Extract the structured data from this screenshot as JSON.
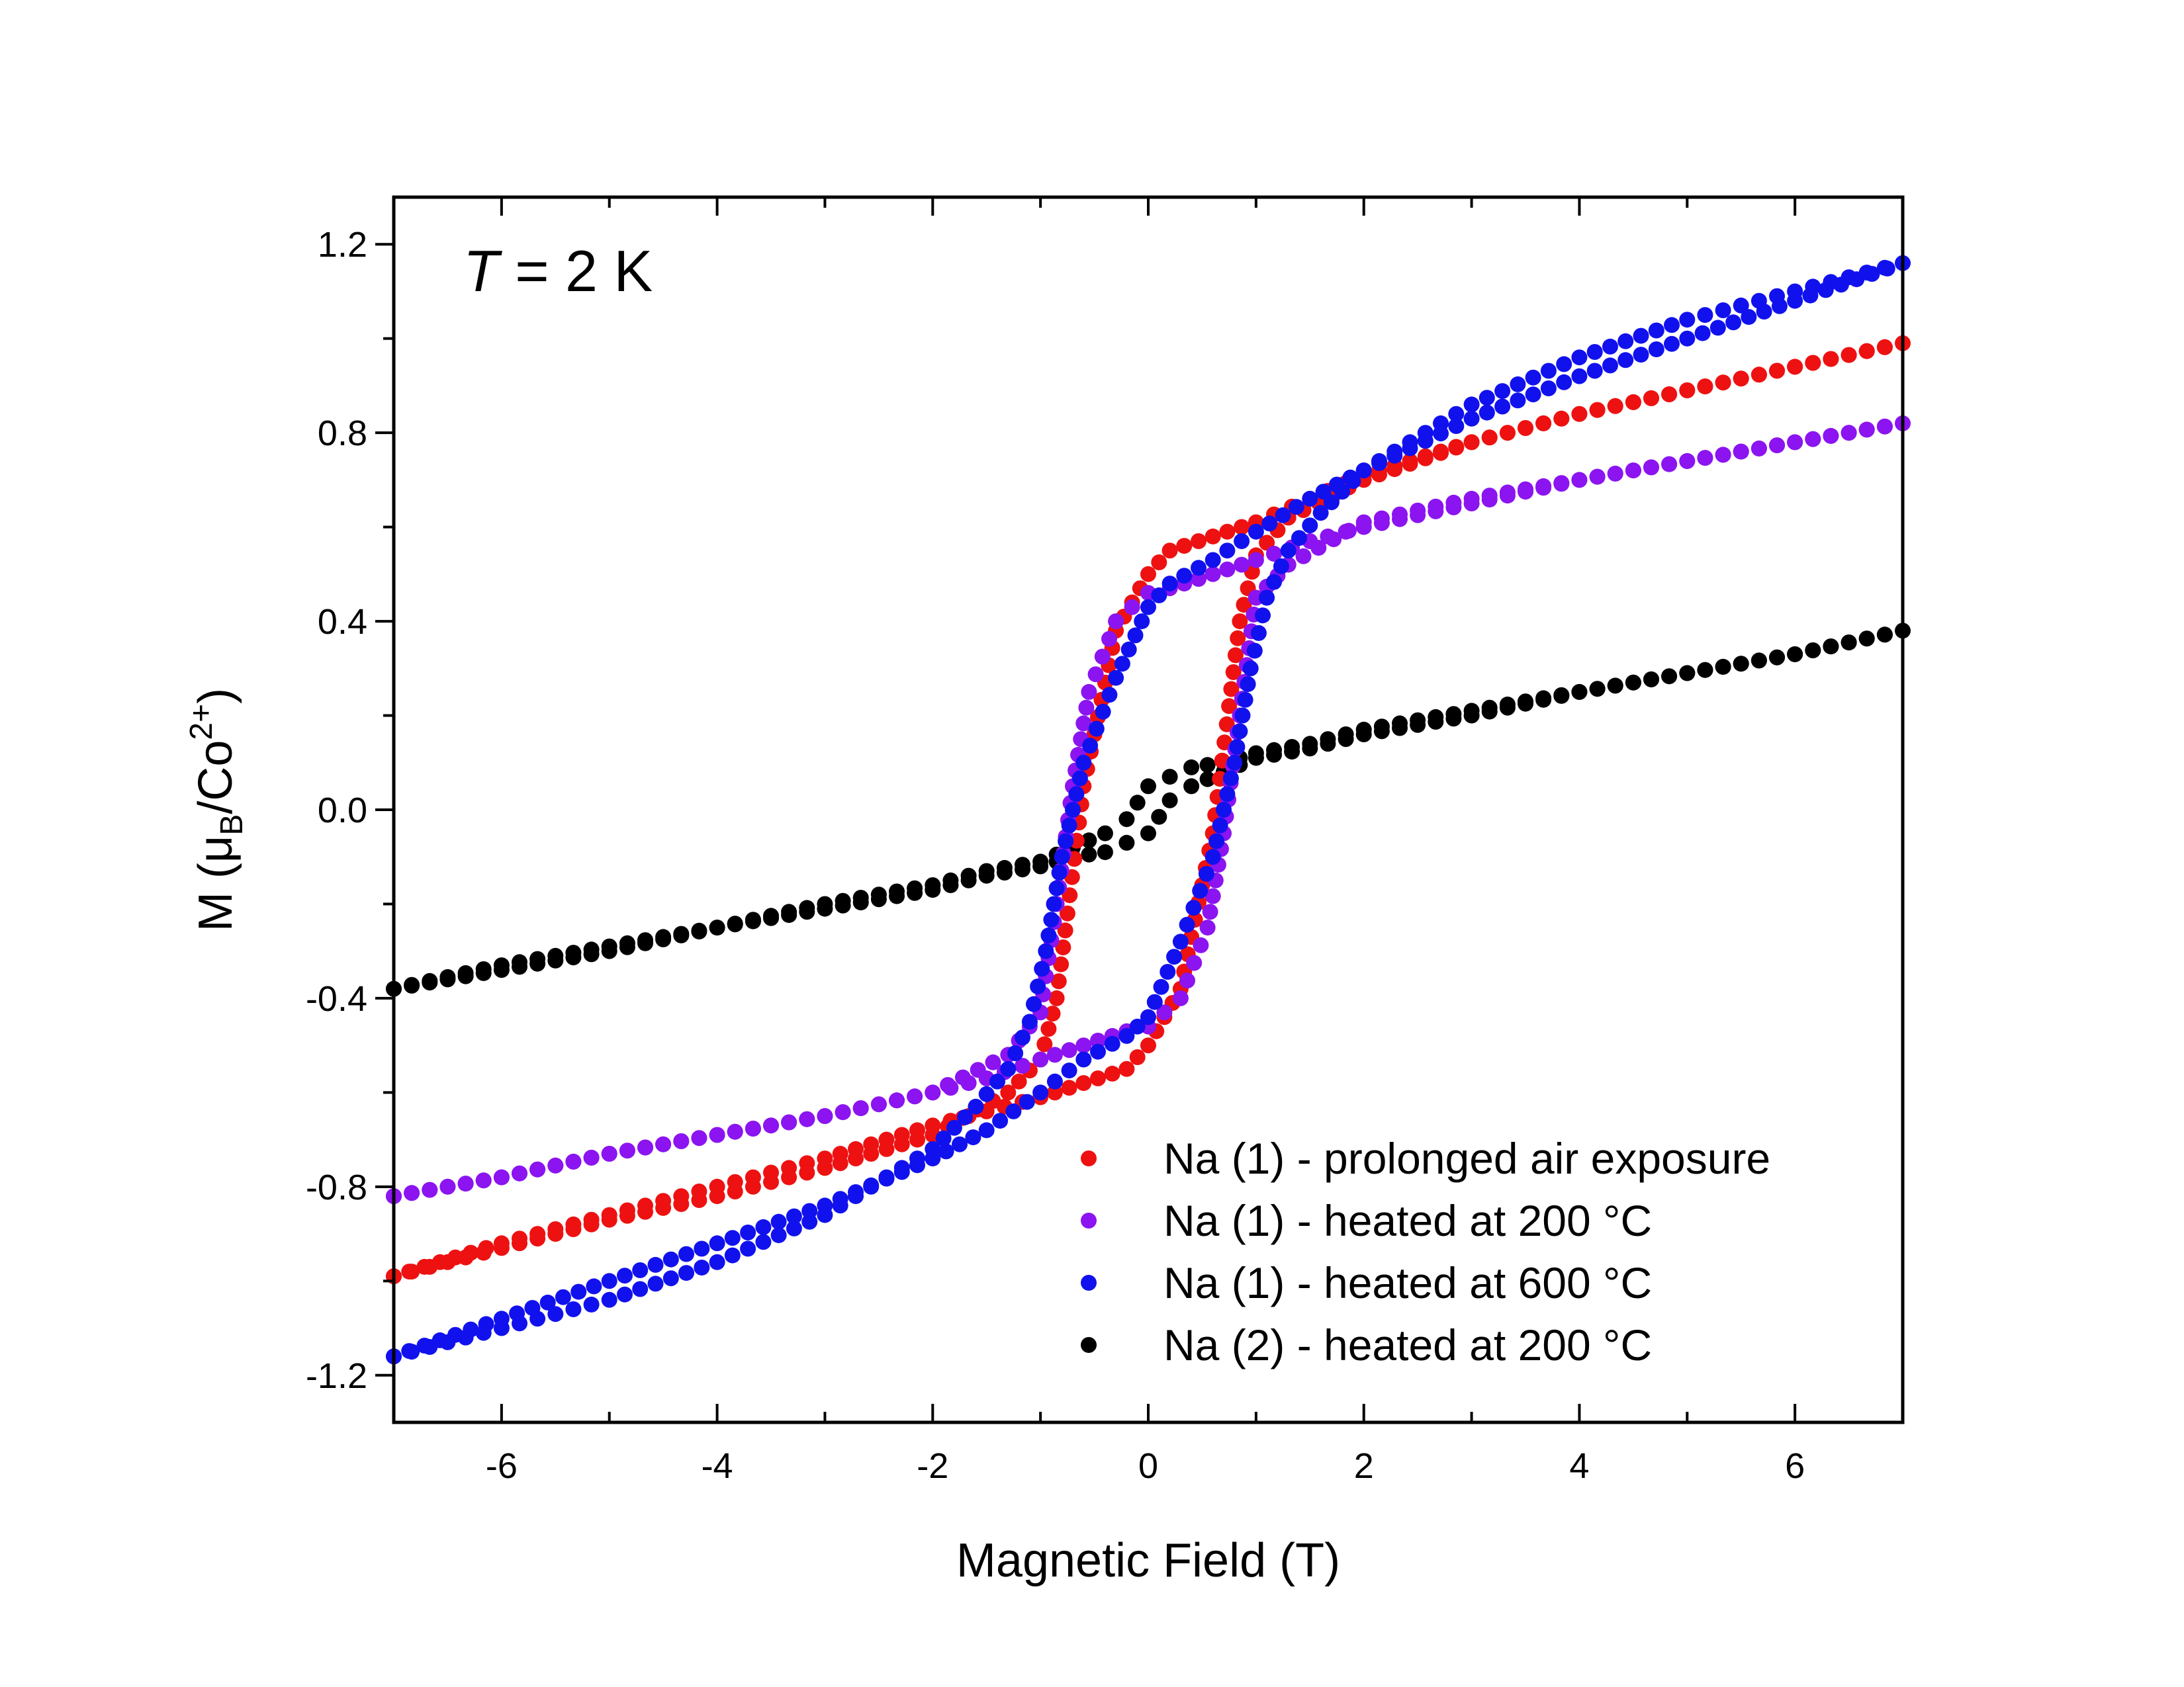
{
  "chart_data": {
    "type": "scatter",
    "annotation": {
      "italic": "T",
      "rest": " = 2 K"
    },
    "xlabel": "Magnetic Field (T)",
    "ylabel": {
      "prefix": "M (",
      "mu": "μ",
      "mu_sub": "B",
      "mid": "/Co",
      "sup": "2+",
      "suffix": ")"
    },
    "xlim": [
      -7,
      7
    ],
    "ylim": [
      -1.3,
      1.3
    ],
    "x_ticks": [
      -6,
      -4,
      -2,
      0,
      2,
      4,
      6
    ],
    "x_tick_labels": [
      "-6",
      "-4",
      "-2",
      "0",
      "2",
      "4",
      "6"
    ],
    "y_ticks": [
      -1.2,
      -0.8,
      -0.4,
      0.0,
      0.4,
      0.8,
      1.2
    ],
    "y_tick_labels": [
      "-1.2",
      "-0.8",
      "-0.4",
      "0.0",
      "0.4",
      "0.8",
      "1.2"
    ],
    "grid": false,
    "legend_position": "bottom-right",
    "series": [
      {
        "name": "Na (1) - prolonged air exposure",
        "color": "#ee1111",
        "x": [
          -7,
          -6,
          -5,
          -4,
          -3,
          -2,
          -1.5,
          -1.0,
          -0.6,
          -0.2,
          0,
          0.3,
          0.6,
          0.75,
          0.85,
          1.0,
          1.3,
          2,
          3,
          4,
          5,
          6,
          7,
          6,
          5,
          4,
          3,
          2,
          1.5,
          1.0,
          0.6,
          0.2,
          0,
          -0.3,
          -0.6,
          -0.75,
          -0.85,
          -1.0,
          -1.3,
          -2,
          -3,
          -4,
          -5,
          -6,
          -7
        ],
        "y": [
          -0.99,
          -0.92,
          -0.86,
          -0.8,
          -0.74,
          -0.67,
          -0.64,
          -0.61,
          -0.58,
          -0.55,
          -0.5,
          -0.38,
          -0.05,
          0.22,
          0.4,
          0.54,
          0.62,
          0.7,
          0.78,
          0.84,
          0.89,
          0.94,
          0.99,
          0.94,
          0.89,
          0.84,
          0.78,
          0.71,
          0.66,
          0.61,
          0.58,
          0.55,
          0.5,
          0.38,
          0.05,
          -0.22,
          -0.4,
          -0.53,
          -0.6,
          -0.69,
          -0.76,
          -0.82,
          -0.87,
          -0.93,
          -0.99
        ]
      },
      {
        "name": "Na (1) - heated at 200 °C",
        "color": "#8b14f0",
        "x": [
          -7,
          -6,
          -5,
          -4,
          -3,
          -2,
          -1.5,
          -1.0,
          -0.6,
          -0.2,
          0,
          0.3,
          0.55,
          0.7,
          0.85,
          1.0,
          1.3,
          2,
          3,
          4,
          5,
          6,
          7,
          6,
          5,
          4,
          3,
          2,
          1.5,
          1.0,
          0.6,
          0.2,
          0,
          -0.3,
          -0.55,
          -0.7,
          -0.85,
          -1.0,
          -1.3,
          -2,
          -3,
          -4,
          -5,
          -6,
          -7
        ],
        "y": [
          -0.82,
          -0.78,
          -0.73,
          -0.69,
          -0.65,
          -0.6,
          -0.57,
          -0.53,
          -0.5,
          -0.47,
          -0.46,
          -0.4,
          -0.25,
          -0.05,
          0.2,
          0.45,
          0.52,
          0.61,
          0.66,
          0.7,
          0.74,
          0.78,
          0.82,
          0.78,
          0.74,
          0.7,
          0.65,
          0.6,
          0.57,
          0.53,
          0.5,
          0.47,
          0.46,
          0.4,
          0.25,
          0.05,
          -0.2,
          -0.43,
          -0.52,
          -0.6,
          -0.65,
          -0.69,
          -0.73,
          -0.78,
          -0.82
        ]
      },
      {
        "name": "Na (1) - heated at 600 °C",
        "color": "#1111ee",
        "x": [
          -7,
          -6,
          -5,
          -4,
          -3,
          -2,
          -1.5,
          -1.0,
          -0.6,
          -0.2,
          0,
          0.3,
          0.6,
          0.8,
          0.95,
          1.1,
          1.3,
          1.6,
          2,
          3,
          4,
          5,
          6,
          7,
          6,
          5,
          4,
          3,
          2,
          1.5,
          1.0,
          0.6,
          0.2,
          0,
          -0.3,
          -0.6,
          -0.8,
          -0.95,
          -1.1,
          -1.3,
          -1.6,
          -2,
          -3,
          -4,
          -5,
          -6,
          -7
        ],
        "y": [
          -1.16,
          -1.08,
          -1.0,
          -0.92,
          -0.84,
          -0.74,
          -0.68,
          -0.6,
          -0.53,
          -0.48,
          -0.44,
          -0.28,
          -0.1,
          0.1,
          0.3,
          0.45,
          0.55,
          0.63,
          0.72,
          0.86,
          0.96,
          1.04,
          1.1,
          1.16,
          1.08,
          1.0,
          0.92,
          0.83,
          0.72,
          0.66,
          0.59,
          0.53,
          0.48,
          0.43,
          0.28,
          0.1,
          -0.1,
          -0.3,
          -0.45,
          -0.55,
          -0.63,
          -0.72,
          -0.86,
          -0.96,
          -1.04,
          -1.1,
          -1.16
        ]
      },
      {
        "name": "Na (2) - heated at 200 °C",
        "color": "#000000",
        "x": [
          -7,
          -6,
          -5,
          -4,
          -3,
          -2,
          -1.5,
          -1.0,
          -0.7,
          -0.4,
          -0.2,
          0,
          0.2,
          0.4,
          0.7,
          1.0,
          1.5,
          2,
          3,
          4,
          5,
          6,
          7,
          6,
          5,
          4,
          3,
          2,
          1.5,
          1.0,
          0.7,
          0.4,
          0.2,
          0,
          -0.2,
          -0.4,
          -0.7,
          -1.0,
          -1.5,
          -2,
          -3,
          -4,
          -5,
          -6,
          -7
        ],
        "y": [
          -0.38,
          -0.34,
          -0.3,
          -0.25,
          -0.21,
          -0.17,
          -0.14,
          -0.12,
          -0.1,
          -0.09,
          -0.07,
          -0.05,
          0.02,
          0.05,
          0.08,
          0.11,
          0.13,
          0.16,
          0.2,
          0.25,
          0.29,
          0.33,
          0.38,
          0.33,
          0.29,
          0.25,
          0.21,
          0.17,
          0.14,
          0.12,
          0.1,
          0.09,
          0.07,
          0.05,
          -0.02,
          -0.05,
          -0.08,
          -0.11,
          -0.13,
          -0.16,
          -0.2,
          -0.25,
          -0.29,
          -0.33,
          -0.38
        ]
      }
    ]
  }
}
